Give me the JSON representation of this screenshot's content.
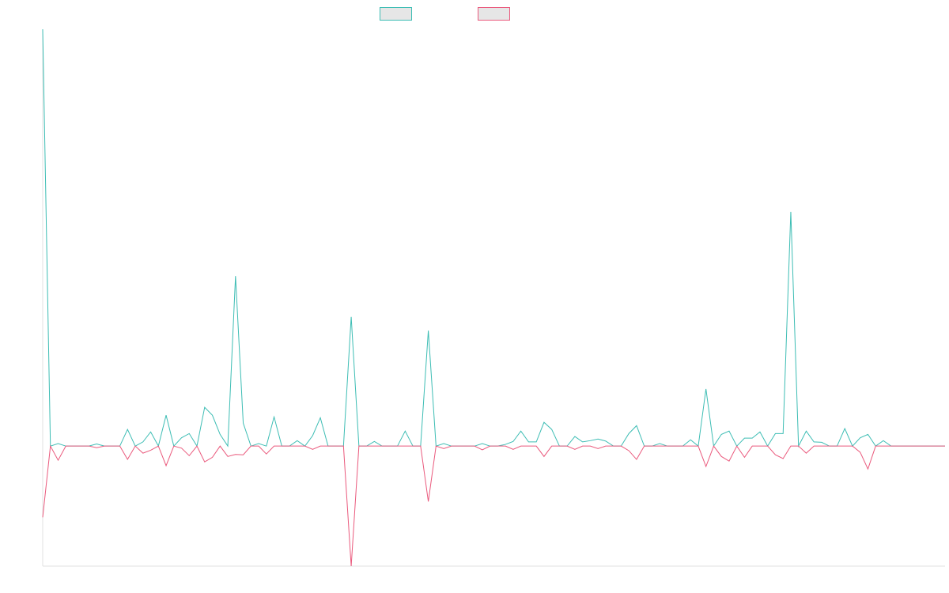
{
  "chart_data": {
    "type": "line",
    "legend": "top",
    "categories": [
      null,
      null,
      null,
      null,
      null,
      null,
      null,
      null,
      null,
      null,
      null,
      null,
      null,
      null,
      null,
      null,
      null,
      null,
      null,
      null,
      null,
      null,
      null,
      null,
      null,
      null,
      null,
      null,
      null,
      null,
      null,
      null,
      null,
      null,
      null,
      null,
      null,
      null,
      null,
      null,
      null,
      null,
      null,
      null,
      null,
      null,
      null,
      null,
      null,
      null,
      null,
      null,
      null,
      null,
      null,
      null,
      null,
      null,
      null,
      null,
      null,
      null,
      null,
      null,
      null,
      null,
      null,
      null,
      null,
      null,
      null,
      null,
      null,
      null,
      null,
      null,
      null,
      null,
      null,
      null,
      null,
      null,
      null,
      null,
      null,
      null,
      null,
      null,
      null,
      null,
      null,
      null,
      null,
      null,
      null,
      null,
      null,
      null,
      null,
      null,
      null,
      null,
      null,
      null,
      null,
      null,
      null,
      null,
      null,
      null,
      null,
      null,
      null,
      null,
      null,
      null,
      null,
      null
    ],
    "series": [
      {
        "color": "#3dbdb4",
        "values": [
          100,
          0,
          0.6,
          0,
          0,
          0,
          0,
          0.5,
          0,
          0,
          0,
          4,
          0,
          1,
          3.4,
          0,
          7.4,
          0,
          2,
          3,
          0,
          9.3,
          7.4,
          2.8,
          0,
          40.8,
          5.5,
          0,
          0.6,
          0,
          7,
          0,
          0,
          1.3,
          0,
          2.5,
          6.8,
          0,
          0,
          0,
          31,
          0,
          0,
          1.1,
          0,
          0,
          0,
          3.6,
          0,
          0,
          27.7,
          0,
          0.6,
          0,
          0,
          0,
          0,
          0.6,
          0,
          0,
          0.4,
          1.1,
          3.6,
          1,
          1,
          5.7,
          4,
          0,
          0,
          2.3,
          1,
          1.3,
          1.7,
          1.2,
          0,
          0,
          3,
          4.9,
          0,
          0,
          0.6,
          0,
          0,
          0,
          1.5,
          0,
          13.7,
          0,
          2.8,
          3.6,
          0,
          1.9,
          1.9,
          3.4,
          0,
          3,
          3,
          56.2,
          0,
          3.6,
          1,
          0.9,
          0,
          0,
          4.2,
          0,
          2,
          2.8,
          0,
          1.3,
          0,
          0,
          0,
          0,
          0,
          0,
          0,
          0
        ]
      },
      {
        "color": "#ea5a7d",
        "values": [
          -17.1,
          0,
          -3.4,
          0,
          0,
          0,
          0,
          -0.4,
          0,
          0,
          0,
          -3.2,
          0,
          -1.7,
          -1,
          0,
          -4.7,
          0,
          -0.5,
          -2.3,
          0,
          -3.8,
          -2.7,
          0,
          -2.5,
          -2,
          -2.1,
          0,
          0,
          -1.9,
          0,
          0,
          0,
          0,
          0,
          -0.8,
          0,
          0,
          0,
          0,
          -28.8,
          0,
          0,
          0,
          0,
          0,
          0,
          0,
          0,
          0,
          -13.3,
          0,
          -0.6,
          0,
          0,
          0,
          0,
          -0.9,
          0,
          0,
          0,
          -0.8,
          0,
          0,
          0,
          -2.5,
          0,
          0,
          0,
          -0.8,
          0,
          0,
          -0.6,
          0,
          0,
          0,
          -1.1,
          -3.2,
          0,
          0,
          0,
          0,
          0,
          0,
          0,
          0,
          -4.9,
          0,
          -2.5,
          -3.6,
          0,
          -2.7,
          0,
          0,
          0,
          -2.1,
          -3,
          0,
          0,
          -1.7,
          0,
          0,
          0,
          0,
          0,
          0,
          -1.5,
          -5.5,
          0,
          0,
          0,
          0,
          0,
          0,
          0,
          0,
          0,
          0
        ]
      }
    ],
    "ylim": [
      -28.8,
      100
    ]
  }
}
